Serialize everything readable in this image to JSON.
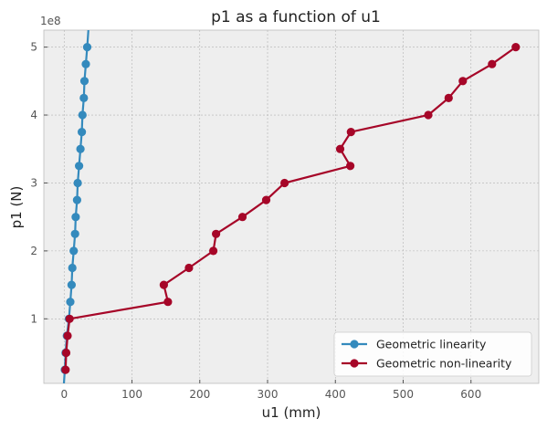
{
  "chart_data": {
    "type": "line",
    "title": "p1 as a function of u1",
    "xlabel": "u1 (mm)",
    "ylabel": "p1 (N)",
    "y_offset_label": "1e8",
    "xlim": [
      -30,
      700
    ],
    "ylim": [
      5000000,
      525000000
    ],
    "x_ticks": [
      0,
      100,
      200,
      300,
      400,
      500,
      600
    ],
    "x_tick_labels": [
      "0",
      "100",
      "200",
      "300",
      "400",
      "500",
      "600"
    ],
    "y_ticks": [
      100000000,
      200000000,
      300000000,
      400000000,
      500000000
    ],
    "y_tick_labels": [
      "1",
      "2",
      "3",
      "4",
      "5"
    ],
    "grid": true,
    "legend_position": "lower right",
    "series": [
      {
        "name": "Geometric linearity",
        "color": "#348ABD",
        "line_extends": true,
        "points": [
          [
            1,
            25000000
          ],
          [
            2,
            50000000
          ],
          [
            4,
            75000000
          ],
          [
            7,
            100000000
          ],
          [
            9,
            125000000
          ],
          [
            11,
            150000000
          ],
          [
            12,
            175000000
          ],
          [
            14,
            200000000
          ],
          [
            16,
            225000000
          ],
          [
            17,
            250000000
          ],
          [
            19,
            275000000
          ],
          [
            20,
            300000000
          ],
          [
            22,
            325000000
          ],
          [
            24,
            350000000
          ],
          [
            26,
            375000000
          ],
          [
            27,
            400000000
          ],
          [
            29,
            425000000
          ],
          [
            30,
            450000000
          ],
          [
            32,
            475000000
          ],
          [
            34,
            500000000
          ]
        ]
      },
      {
        "name": "Geometric non-linearity",
        "color": "#A60628",
        "line_extends": false,
        "points": [
          [
            2,
            25000000
          ],
          [
            3,
            50000000
          ],
          [
            5,
            75000000
          ],
          [
            8,
            100000000
          ],
          [
            153,
            125000000
          ],
          [
            147,
            150000000
          ],
          [
            184,
            175000000
          ],
          [
            220,
            200000000
          ],
          [
            224,
            225000000
          ],
          [
            263,
            250000000
          ],
          [
            298,
            275000000
          ],
          [
            325,
            300000000
          ],
          [
            422,
            325000000
          ],
          [
            407,
            350000000
          ],
          [
            423,
            375000000
          ],
          [
            537,
            400000000
          ],
          [
            567,
            425000000
          ],
          [
            588,
            450000000
          ],
          [
            631,
            475000000
          ],
          [
            666,
            500000000
          ]
        ]
      }
    ]
  }
}
